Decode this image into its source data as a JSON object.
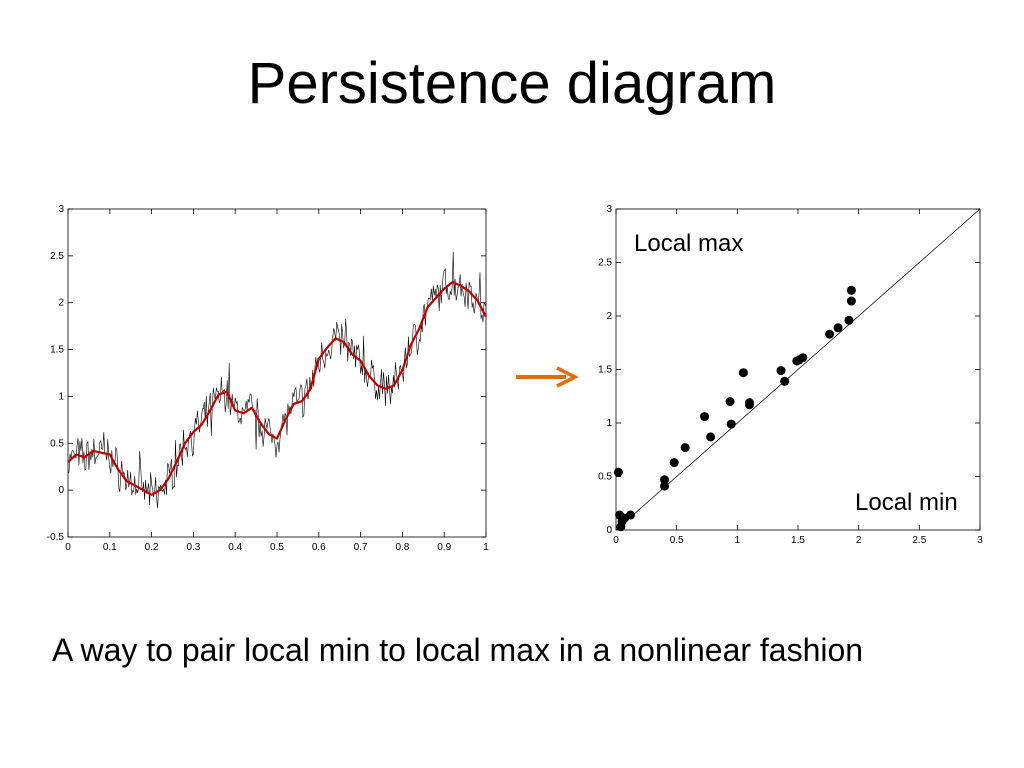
{
  "slide": {
    "title": "Persistence diagram",
    "caption": "A way to pair local min to local max in a nonlinear fashion",
    "arrow_color": "#e46c0a"
  },
  "chart_data": [
    {
      "type": "line",
      "xlim": [
        0,
        1
      ],
      "ylim": [
        -0.5,
        3
      ],
      "xticks": [
        "0",
        "0.1",
        "0.2",
        "0.3",
        "0.4",
        "0.5",
        "0.6",
        "0.7",
        "0.8",
        "0.9",
        "1"
      ],
      "yticks": [
        "-0.5",
        "0",
        "0.5",
        "1",
        "1.5",
        "2",
        "2.5",
        "3"
      ],
      "xtick_values": [
        0,
        0.1,
        0.2,
        0.3,
        0.4,
        0.5,
        0.6,
        0.7,
        0.8,
        0.9,
        1
      ],
      "ytick_values": [
        -0.5,
        0,
        0.5,
        1,
        1.5,
        2,
        2.5,
        3
      ],
      "series": [
        {
          "color": "#c00000",
          "x": [
            0,
            0.02,
            0.04,
            0.06,
            0.08,
            0.1,
            0.12,
            0.14,
            0.16,
            0.18,
            0.2,
            0.22,
            0.24,
            0.26,
            0.28,
            0.3,
            0.32,
            0.34,
            0.36,
            0.38,
            0.4,
            0.42,
            0.44,
            0.46,
            0.48,
            0.5,
            0.52,
            0.54,
            0.56,
            0.58,
            0.6,
            0.62,
            0.64,
            0.66,
            0.68,
            0.7,
            0.72,
            0.74,
            0.76,
            0.78,
            0.8,
            0.82,
            0.84,
            0.86,
            0.88,
            0.9,
            0.92,
            0.94,
            0.96,
            0.98,
            1.0
          ],
          "y": [
            0.3,
            0.38,
            0.35,
            0.42,
            0.4,
            0.38,
            0.22,
            0.1,
            0.05,
            0.0,
            -0.05,
            0.0,
            0.12,
            0.3,
            0.5,
            0.62,
            0.7,
            0.85,
            1.02,
            1.05,
            0.85,
            0.82,
            0.88,
            0.72,
            0.6,
            0.55,
            0.75,
            0.92,
            0.95,
            1.08,
            1.4,
            1.52,
            1.62,
            1.58,
            1.45,
            1.38,
            1.22,
            1.12,
            1.08,
            1.12,
            1.28,
            1.55,
            1.72,
            1.95,
            2.05,
            2.15,
            2.22,
            2.18,
            2.12,
            2.02,
            1.85
          ]
        }
      ]
    },
    {
      "type": "scatter",
      "xlim": [
        0,
        3
      ],
      "ylim": [
        0,
        3
      ],
      "xticks": [
        "0",
        "0.5",
        "1",
        "1.5",
        "2",
        "2.5",
        "3"
      ],
      "yticks": [
        "0",
        "0.5",
        "1",
        "1.5",
        "2",
        "2.5",
        "3"
      ],
      "xtick_values": [
        0,
        0.5,
        1,
        1.5,
        2,
        2.5,
        3
      ],
      "ytick_values": [
        0,
        0.5,
        1,
        1.5,
        2,
        2.5,
        3
      ],
      "diagonal": true,
      "annotations": {
        "top": "Local max",
        "bottom": "Local min"
      },
      "points": [
        {
          "x": 0.02,
          "y": 0.54
        },
        {
          "x": 0.03,
          "y": 0.14
        },
        {
          "x": 0.04,
          "y": 0.03
        },
        {
          "x": 0.05,
          "y": 0.08
        },
        {
          "x": 0.07,
          "y": 0.11
        },
        {
          "x": 0.12,
          "y": 0.14
        },
        {
          "x": 0.4,
          "y": 0.41
        },
        {
          "x": 0.4,
          "y": 0.47
        },
        {
          "x": 0.48,
          "y": 0.63
        },
        {
          "x": 0.57,
          "y": 0.77
        },
        {
          "x": 0.73,
          "y": 1.06
        },
        {
          "x": 0.78,
          "y": 0.87
        },
        {
          "x": 0.94,
          "y": 1.2
        },
        {
          "x": 0.95,
          "y": 0.99
        },
        {
          "x": 1.05,
          "y": 1.47
        },
        {
          "x": 1.1,
          "y": 1.17
        },
        {
          "x": 1.1,
          "y": 1.19
        },
        {
          "x": 1.36,
          "y": 1.49
        },
        {
          "x": 1.39,
          "y": 1.39
        },
        {
          "x": 1.49,
          "y": 1.58
        },
        {
          "x": 1.51,
          "y": 1.59
        },
        {
          "x": 1.54,
          "y": 1.61
        },
        {
          "x": 1.76,
          "y": 1.83
        },
        {
          "x": 1.83,
          "y": 1.89
        },
        {
          "x": 1.92,
          "y": 1.96
        },
        {
          "x": 1.94,
          "y": 2.14
        },
        {
          "x": 1.94,
          "y": 2.24
        }
      ]
    }
  ]
}
